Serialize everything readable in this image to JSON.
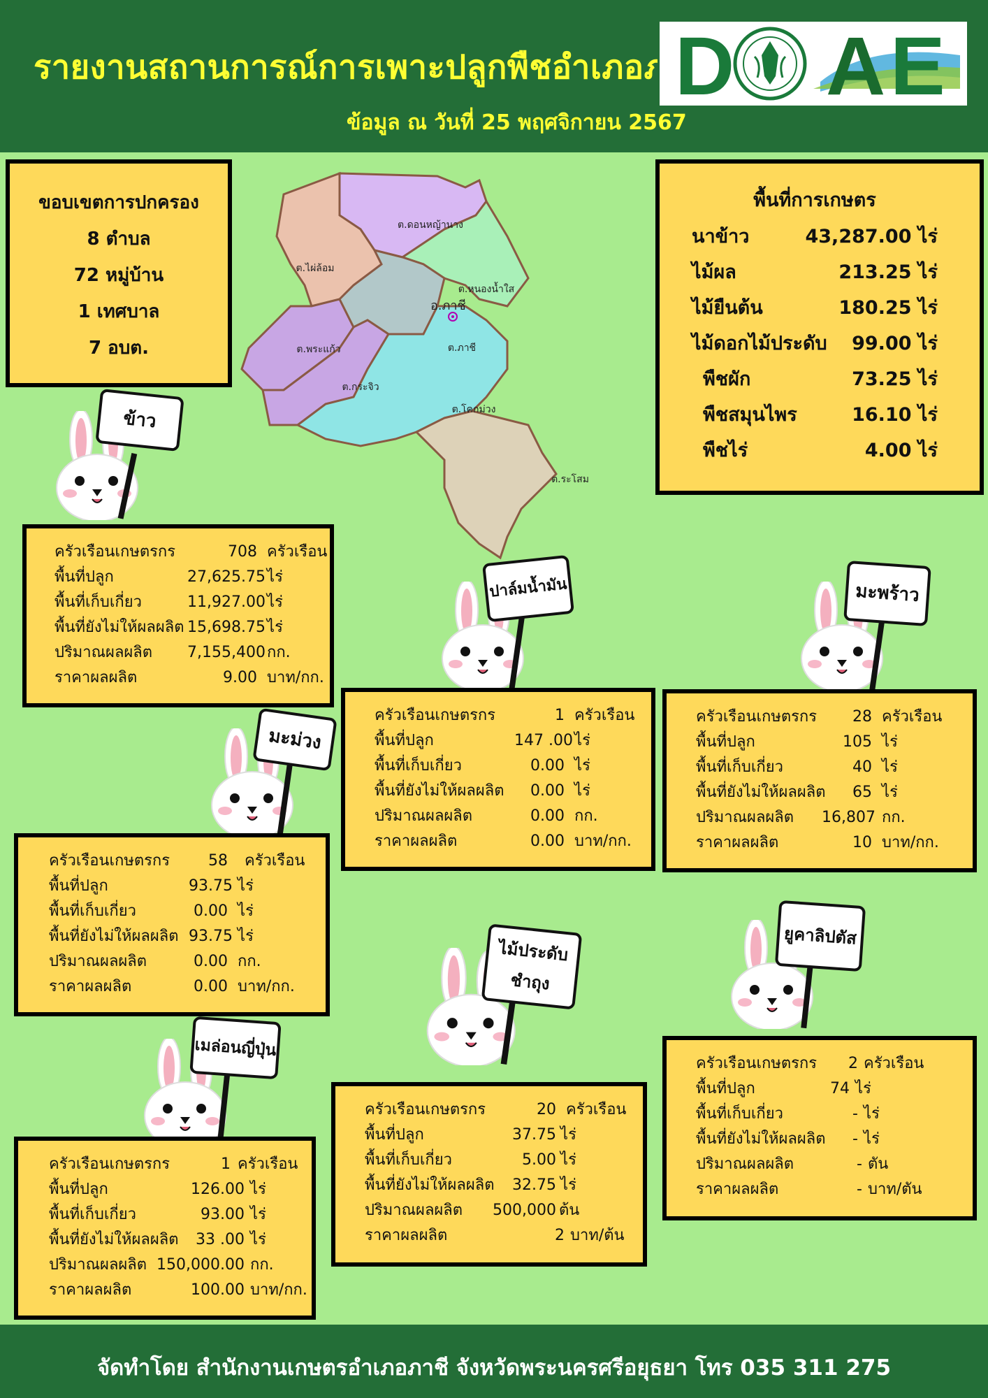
{
  "header": {
    "title": "รายงานสถานการณ์การเพาะปลูกพืชอำเภอภาชี",
    "subtitle": "ข้อมูล ณ วันที่ 25 พฤศจิกายน 2567",
    "logo_letters": [
      "D",
      "A",
      "E"
    ]
  },
  "admin": {
    "title": "ขอบเขตการปกครอง",
    "subdistricts": "8 ตำบล",
    "villages": "72 หมู่บ้าน",
    "municipality": "1 เทศบาล",
    "sao": "7 อบต."
  },
  "map": {
    "district_label": "อ.ภาชี",
    "subdistricts": [
      "ต.ดอนหญ้านาง",
      "ต.ไผ่ล้อม",
      "ต.หนองน้ำใส",
      "ต.พระแก้ว",
      "ต.ภาชี",
      "ต.กระจิว",
      "ต.โคกม่วง",
      "ต.ระโสม"
    ]
  },
  "land": {
    "title": "พื้นที่การเกษตร",
    "rows": [
      {
        "name": "นาข้าว",
        "value": "43,287.00 ไร่"
      },
      {
        "name": "ไม้ผล",
        "value": "213.25 ไร่"
      },
      {
        "name": "ไม้ยืนต้น",
        "value": "180.25 ไร่"
      },
      {
        "name": "ไม้ดอกไม้ประดับ",
        "value": "99.00 ไร่"
      },
      {
        "name": "พืชผัก",
        "value": "73.25 ไร่"
      },
      {
        "name": "พืชสมุนไพร",
        "value": "16.10 ไร่"
      },
      {
        "name": "พืชไร่",
        "value": "4.00 ไร่"
      }
    ]
  },
  "crops": {
    "rice": {
      "sign": "ข้าว",
      "rows": [
        {
          "label": "ครัวเรือนเกษตรกร",
          "value": "708",
          "unit": "ครัวเรือน"
        },
        {
          "label": "พื้นที่ปลูก",
          "value": "27,625.75",
          "unit": "ไร่"
        },
        {
          "label": "พื้นที่เก็บเกี่ยว",
          "value": "11,927.00",
          "unit": "ไร่"
        },
        {
          "label": "พื้นที่ยังไม่ให้ผลผลิต",
          "value": "15,698.75",
          "unit": "ไร่"
        },
        {
          "label": "ปริมาณผลผลิต",
          "value": "7,155,400",
          "unit": "กก."
        },
        {
          "label": "ราคาผลผลิต",
          "value": "9.00",
          "unit": "บาท/กก."
        }
      ]
    },
    "palm": {
      "sign": "ปาล์มน้ำมัน",
      "rows": [
        {
          "label": "ครัวเรือนเกษตรกร",
          "value": "1",
          "unit": "ครัวเรือน"
        },
        {
          "label": "พื้นที่ปลูก",
          "value": "147 .00",
          "unit": "ไร่"
        },
        {
          "label": "พื้นที่เก็บเกี่ยว",
          "value": "0.00",
          "unit": "ไร่"
        },
        {
          "label": "พื้นที่ยังไม่ให้ผลผลิต",
          "value": "0.00",
          "unit": "ไร่"
        },
        {
          "label": "ปริมาณผลผลิต",
          "value": "0.00",
          "unit": "กก."
        },
        {
          "label": "ราคาผลผลิต",
          "value": "0.00",
          "unit": "บาท/กก."
        }
      ]
    },
    "coconut": {
      "sign": "มะพร้าว",
      "rows": [
        {
          "label": "ครัวเรือนเกษตรกร",
          "value": "28",
          "unit": "ครัวเรือน"
        },
        {
          "label": "พื้นที่ปลูก",
          "value": "105",
          "unit": "ไร่"
        },
        {
          "label": "พื้นที่เก็บเกี่ยว",
          "value": "40",
          "unit": "ไร่"
        },
        {
          "label": "พื้นที่ยังไม่ให้ผลผลิต",
          "value": "65",
          "unit": "ไร่"
        },
        {
          "label": "ปริมาณผลผลิต",
          "value": "16,807",
          "unit": "กก."
        },
        {
          "label": "ราคาผลผลิต",
          "value": "10",
          "unit": "บาท/กก."
        }
      ]
    },
    "mango": {
      "sign": "มะม่วง",
      "rows": [
        {
          "label": "ครัวเรือนเกษตรกร",
          "value": "58",
          "unit": "ครัวเรือน"
        },
        {
          "label": "พื้นที่ปลูก",
          "value": "93.75",
          "unit": "ไร่"
        },
        {
          "label": "พื้นที่เก็บเกี่ยว",
          "value": "0.00",
          "unit": "ไร่"
        },
        {
          "label": "พื้นที่ยังไม่ให้ผลผลิต",
          "value": "93.75",
          "unit": "ไร่"
        },
        {
          "label": "ปริมาณผลผลิต",
          "value": "0.00",
          "unit": "กก."
        },
        {
          "label": "ราคาผลผลิต",
          "value": "0.00",
          "unit": "บาท/กก."
        }
      ]
    },
    "ornamental": {
      "sign_line1": "ไม้ประดับ",
      "sign_line2": "ชำถุง",
      "rows": [
        {
          "label": "ครัวเรือนเกษตรกร",
          "value": "20",
          "unit": "ครัวเรือน"
        },
        {
          "label": "พื้นที่ปลูก",
          "value": "37.75",
          "unit": "ไร่"
        },
        {
          "label": "พื้นที่เก็บเกี่ยว",
          "value": "5.00",
          "unit": "ไร่"
        },
        {
          "label": "พื้นที่ยังไม่ให้ผลผลิต",
          "value": "32.75",
          "unit": "ไร่"
        },
        {
          "label": "ปริมาณผลผลิต",
          "value": "500,000",
          "unit": "ต้น"
        },
        {
          "label": "ราคาผลผลิต",
          "value": "2",
          "unit": "บาท/ต้น"
        }
      ]
    },
    "eucalyptus": {
      "sign": "ยูคาลิปตัส",
      "rows": [
        {
          "label": "ครัวเรือนเกษตรกร",
          "value": "2",
          "unit": "ครัวเรือน"
        },
        {
          "label": "พื้นที่ปลูก",
          "value": "74",
          "unit": "ไร่"
        },
        {
          "label": "พื้นที่เก็บเกี่ยว",
          "value": "-",
          "unit": "ไร่"
        },
        {
          "label": "พื้นที่ยังไม่ให้ผลผลิต",
          "value": "-",
          "unit": "ไร่"
        },
        {
          "label": "ปริมาณผลผลิต",
          "value": "-",
          "unit": "ตัน"
        },
        {
          "label": "ราคาผลผลิต",
          "value": "-",
          "unit": "บาท/ตัน"
        }
      ]
    },
    "melon": {
      "sign": "เมล่อนญี่ปุ่น",
      "rows": [
        {
          "label": "ครัวเรือนเกษตรกร",
          "value": "1",
          "unit": "ครัวเรือน"
        },
        {
          "label": "พื้นที่ปลูก",
          "value": "126.00",
          "unit": "ไร่"
        },
        {
          "label": "พื้นที่เก็บเกี่ยว",
          "value": "93.00",
          "unit": "ไร่"
        },
        {
          "label": "พื้นที่ยังไม่ให้ผลผลิต",
          "value": "33 .00",
          "unit": "ไร่"
        },
        {
          "label": "ปริมาณผลผลิต",
          "value": "150,000.00",
          "unit": "กก."
        },
        {
          "label": "ราคาผลผลิต",
          "value": "100.00",
          "unit": "บาท/กก."
        }
      ]
    }
  },
  "footer": {
    "text": "จัดทำโดย สำนักงานเกษตรอำเภอภาชี จังหวัดพระนครศรีอยุธยา โทร 035 311 275"
  },
  "colors": {
    "header_green": "#236e37",
    "background_green": "#a8eb8e",
    "box_yellow": "#fed95a",
    "title_yellow": "#ffff33"
  }
}
